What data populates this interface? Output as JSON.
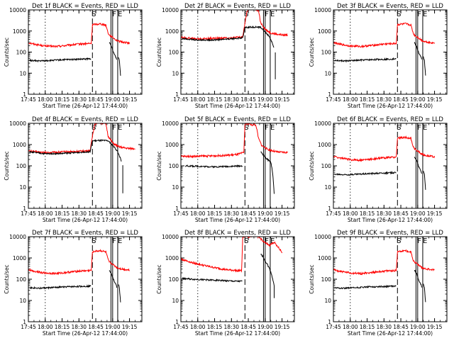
{
  "figure": {
    "panels": [
      {
        "title": "Det 1f BLACK = Events, RED = LLD",
        "shape": "a"
      },
      {
        "title": "Det 2f BLACK = Events, RED = LLD",
        "shape": "b"
      },
      {
        "title": "Det 3f BLACK = Events, RED = LLD",
        "shape": "a"
      },
      {
        "title": "Det 4f BLACK = Events, RED = LLD",
        "shape": "b"
      },
      {
        "title": "Det 5f BLACK = Events, RED = LLD",
        "shape": "c"
      },
      {
        "title": "Det 6f BLACK = Events, RED = LLD",
        "shape": "a"
      },
      {
        "title": "Det 7f BLACK = Events, RED = LLD",
        "shape": "a"
      },
      {
        "title": "Det 8f BLACK = Events, RED = LLD",
        "shape": "d"
      },
      {
        "title": "Det 9f BLACK = Events, RED = LLD",
        "shape": "a"
      }
    ]
  },
  "chart_data": {
    "type": "line",
    "layout": "3x3 grid of small multiples",
    "scale": "log-y",
    "xlabel": "Start Time (26-Apr-12 17:44:00)",
    "ylabel": "Counts/sec",
    "x_ticks": [
      "17:45",
      "18:00",
      "18:15",
      "18:30",
      "18:45",
      "19:00",
      "19:15"
    ],
    "x_tick_minutes": [
      45,
      60,
      75,
      90,
      105,
      120,
      135
    ],
    "xlim_minutes": [
      45,
      146
    ],
    "y_ticks": [
      "1",
      "10",
      "100",
      "1000",
      "10000"
    ],
    "y_tick_values": [
      1,
      10,
      100,
      1000,
      10000
    ],
    "ylim": [
      1,
      10000
    ],
    "series_colors": {
      "events": "#000000",
      "lld": "#ff0000"
    },
    "vertical_markers": [
      {
        "minute": 60,
        "style": "dotted"
      },
      {
        "minute": 102,
        "style": "dashed",
        "label": "S"
      },
      {
        "minute": 118.5,
        "style": "solid"
      },
      {
        "minute": 120,
        "style": "solid"
      },
      {
        "minute": 124.5,
        "style": "solid"
      }
    ],
    "marker_letters": [
      "S",
      "F",
      "E"
    ],
    "series_shapes": {
      "a": {
        "events": [
          [
            46,
            40
          ],
          [
            55,
            38
          ],
          [
            65,
            40
          ],
          [
            75,
            43
          ],
          [
            85,
            45
          ],
          [
            93,
            46
          ],
          [
            101,
            48
          ],
          [
            101,
            null
          ],
          [
            117,
            null
          ],
          [
            117,
            280
          ],
          [
            119,
            180
          ],
          [
            121,
            90
          ],
          [
            123,
            55
          ],
          [
            124,
            38
          ],
          [
            124,
            null
          ],
          [
            125,
            60
          ],
          [
            126,
            40
          ],
          [
            127,
            8
          ]
        ],
        "lld": [
          [
            45,
            280
          ],
          [
            50,
            240
          ],
          [
            60,
            195
          ],
          [
            70,
            185
          ],
          [
            80,
            210
          ],
          [
            90,
            240
          ],
          [
            97,
            250
          ],
          [
            101,
            260
          ],
          [
            102,
            2000
          ],
          [
            109,
            2200
          ],
          [
            114,
            1900
          ],
          [
            116,
            800
          ],
          [
            117,
            650
          ],
          [
            120,
            500
          ],
          [
            123,
            380
          ],
          [
            125,
            330
          ],
          [
            130,
            290
          ],
          [
            135,
            270
          ]
        ]
      },
      "b": {
        "events": [
          [
            46,
            450
          ],
          [
            60,
            370
          ],
          [
            75,
            380
          ],
          [
            90,
            430
          ],
          [
            100,
            470
          ],
          [
            102,
            1500
          ],
          [
            110,
            1550
          ],
          [
            116,
            1500
          ],
          [
            117,
            1300
          ],
          [
            120,
            900
          ],
          [
            122,
            700
          ],
          [
            124,
            500
          ],
          [
            126,
            300
          ],
          [
            128,
            150
          ],
          [
            128,
            null
          ],
          [
            129,
            100
          ],
          [
            129,
            5
          ]
        ],
        "lld": [
          [
            45,
            500
          ],
          [
            60,
            420
          ],
          [
            75,
            450
          ],
          [
            90,
            480
          ],
          [
            100,
            520
          ],
          [
            102,
            2500
          ],
          [
            104,
            9000
          ],
          [
            106,
            11000
          ],
          [
            112,
            10000
          ],
          [
            114,
            9500
          ],
          [
            116,
            2500
          ],
          [
            120,
            1200
          ],
          [
            125,
            800
          ],
          [
            130,
            700
          ],
          [
            135,
            650
          ],
          [
            140,
            650
          ]
        ]
      },
      "c": {
        "events": [
          [
            49,
            100
          ],
          [
            60,
            95
          ],
          [
            75,
            90
          ],
          [
            90,
            95
          ],
          [
            100,
            100
          ],
          [
            100,
            null
          ],
          [
            116,
            null
          ],
          [
            116,
            450
          ],
          [
            119,
            300
          ],
          [
            121,
            220
          ],
          [
            123,
            180
          ],
          [
            125,
            150
          ],
          [
            126,
            80
          ],
          [
            127,
            30
          ],
          [
            128,
            5
          ]
        ],
        "lld": [
          [
            45,
            280
          ],
          [
            55,
            280
          ],
          [
            70,
            290
          ],
          [
            85,
            310
          ],
          [
            95,
            340
          ],
          [
            101,
            420
          ],
          [
            102,
            9000
          ],
          [
            106,
            10000
          ],
          [
            108,
            8000
          ],
          [
            110,
            9500
          ],
          [
            112,
            7500
          ],
          [
            114,
            2000
          ],
          [
            117,
            900
          ],
          [
            122,
            600
          ],
          [
            130,
            450
          ],
          [
            140,
            420
          ]
        ]
      },
      "d": {
        "events": [
          [
            46,
            110
          ],
          [
            55,
            100
          ],
          [
            65,
            95
          ],
          [
            75,
            90
          ],
          [
            85,
            85
          ],
          [
            93,
            80
          ],
          [
            100,
            80
          ],
          [
            100,
            null
          ],
          [
            116,
            null
          ],
          [
            116,
            1500
          ],
          [
            118,
            1200
          ],
          [
            120,
            700
          ],
          [
            122,
            500
          ],
          [
            124,
            300
          ],
          [
            126,
            150
          ],
          [
            128,
            50
          ],
          [
            128,
            12
          ]
        ],
        "lld": [
          [
            45,
            900
          ],
          [
            55,
            600
          ],
          [
            65,
            450
          ],
          [
            75,
            350
          ],
          [
            85,
            280
          ],
          [
            93,
            260
          ],
          [
            99,
            250
          ],
          [
            100,
            9000
          ],
          [
            102,
            11000
          ],
          [
            105,
            9500
          ],
          [
            108,
            11000
          ],
          [
            111,
            12000
          ],
          [
            115,
            9000
          ],
          [
            118,
            6500
          ],
          [
            120,
            5000
          ],
          [
            124,
            4000
          ],
          [
            128,
            5500
          ],
          [
            132,
            3000
          ],
          [
            135,
            1800
          ]
        ]
      }
    }
  }
}
